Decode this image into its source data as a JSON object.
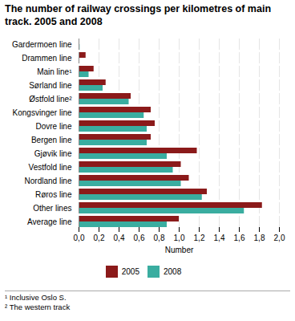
{
  "chart_data": {
    "type": "bar",
    "orientation": "horizontal",
    "title": "The number of railway crossings per kilometres of main track. 2005 and 2008",
    "xlabel": "Number",
    "categories": [
      "Gardermoen line",
      "Drammen line",
      "Main line¹",
      "Sørland line",
      "Østfold line²",
      "Kongsvinger line",
      "Dovre line",
      "Bergen line",
      "Gjøvik line",
      "Vestfold line",
      "Nordland line",
      "Røros line",
      "Other lines",
      "Average line"
    ],
    "series": [
      {
        "name": "2005",
        "color": "#8B1A1A",
        "values": [
          0.0,
          0.07,
          0.15,
          0.27,
          0.52,
          0.72,
          0.76,
          0.72,
          1.18,
          1.02,
          1.1,
          1.28,
          1.83,
          1.0
        ]
      },
      {
        "name": "2008",
        "color": "#3AADA0",
        "values": [
          0.01,
          0.0,
          0.1,
          0.24,
          0.5,
          0.65,
          0.68,
          0.68,
          0.88,
          0.94,
          1.02,
          1.23,
          1.65,
          0.88
        ]
      }
    ],
    "xlim": [
      0,
      2.0
    ],
    "xticks": [
      {
        "value": 0.0,
        "label": "0,0"
      },
      {
        "value": 0.2,
        "label": "0,2"
      },
      {
        "value": 0.4,
        "label": "0,4"
      },
      {
        "value": 0.6,
        "label": "0,6"
      },
      {
        "value": 0.8,
        "label": "0,8"
      },
      {
        "value": 1.0,
        "label": "1,0"
      },
      {
        "value": 1.2,
        "label": "1,2"
      },
      {
        "value": 1.4,
        "label": "1,4"
      },
      {
        "value": 1.6,
        "label": "1,6"
      },
      {
        "value": 1.8,
        "label": "1,8"
      },
      {
        "value": 2.0,
        "label": "2,0"
      }
    ],
    "grid": true,
    "legend": "bottom",
    "annotations": [
      "¹ Inclusive Oslo S.",
      "² The western track"
    ]
  }
}
